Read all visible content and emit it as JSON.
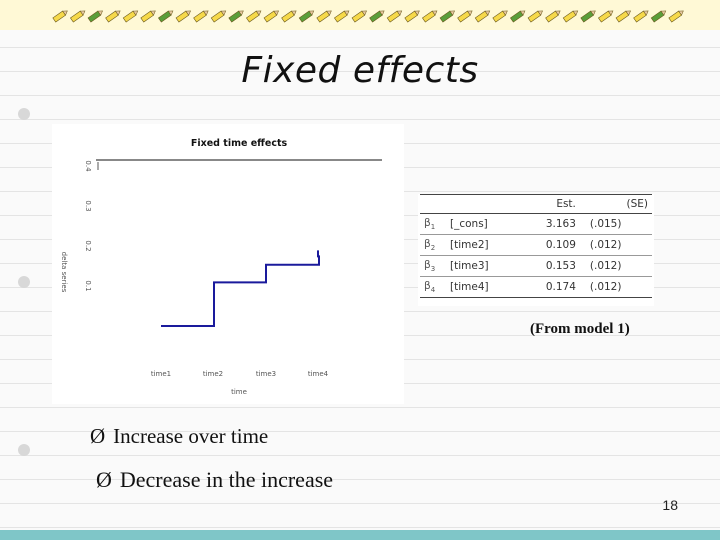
{
  "slide": {
    "title": "Fixed effects",
    "page_number": "18"
  },
  "theme": {
    "background": "#fafafa",
    "ruled_line_color": "#e4e4e4",
    "top_band": "#fff9d6",
    "bottom_band": "#7fc6c8",
    "pencil_yellow": "#f6d94a",
    "pencil_green": "#5a9e3a",
    "line_color": "#1a1a9c"
  },
  "chart": {
    "title": "Fixed time effects",
    "ylabel": "delta series",
    "xlabel": "time",
    "x_ticks": [
      "time1",
      "time2",
      "time3",
      "time4"
    ],
    "y_ticks": [
      "0.1",
      "0.2",
      "0.3",
      "0.4"
    ]
  },
  "chart_data": {
    "type": "line",
    "step": true,
    "title": "Fixed time effects",
    "xlabel": "time",
    "ylabel": "delta series",
    "categories": [
      "time1",
      "time2",
      "time3",
      "time4"
    ],
    "values": [
      0.0,
      0.109,
      0.153,
      0.174
    ],
    "ylim": [
      -0.1,
      0.4
    ],
    "grid": false,
    "legend": "none"
  },
  "estimates": {
    "headers": [
      "",
      "",
      "Est.",
      "(SE)"
    ],
    "rows": [
      {
        "beta": "β",
        "sub": "1",
        "term": "[_cons]",
        "est": "3.163",
        "se": "(.015)"
      },
      {
        "beta": "β",
        "sub": "2",
        "term": "[time2]",
        "est": "0.109",
        "se": "(.012)"
      },
      {
        "beta": "β",
        "sub": "3",
        "term": "[time3]",
        "est": "0.153",
        "se": "(.012)"
      },
      {
        "beta": "β",
        "sub": "4",
        "term": "[time4]",
        "est": "0.174",
        "se": "(.012)"
      }
    ]
  },
  "note": "(From model 1)",
  "bullets": [
    {
      "arrow": "Ø",
      "text": "Increase over time"
    },
    {
      "arrow": "Ø",
      "text": "Decrease in the increase"
    }
  ]
}
